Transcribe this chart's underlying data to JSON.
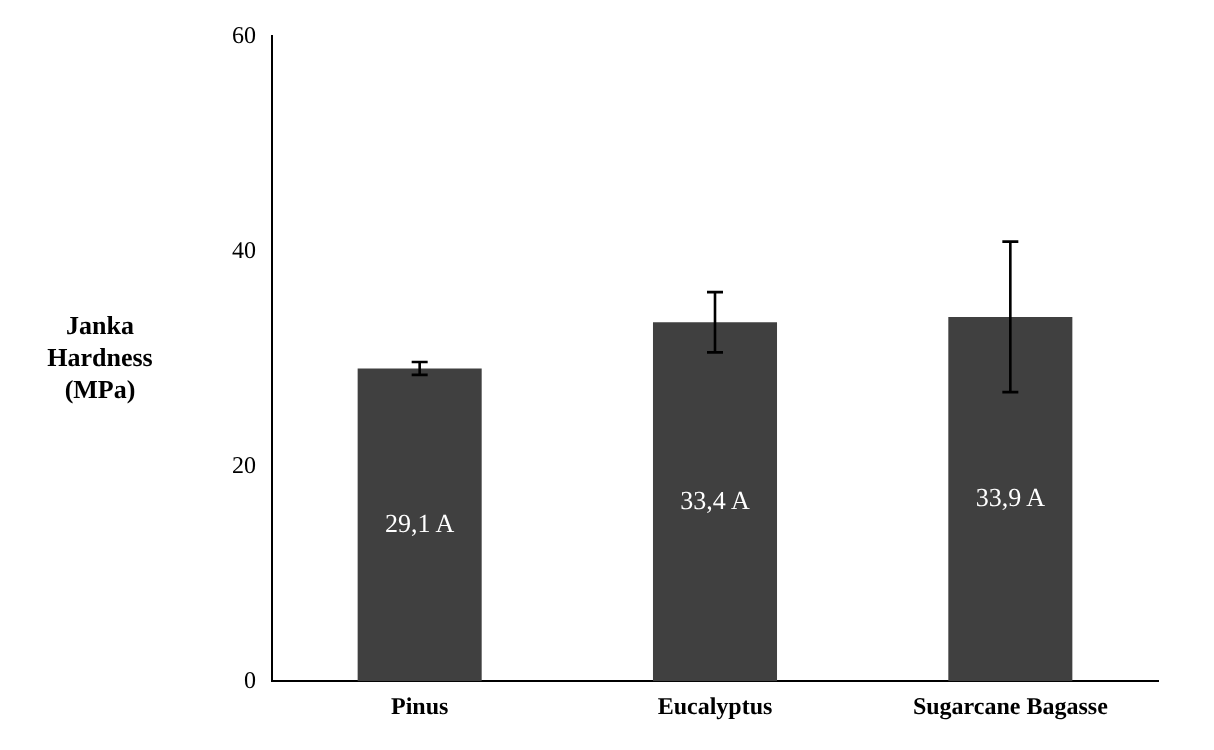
{
  "chart_data": {
    "type": "bar",
    "ylabel": "Janka Hardness (MPa)",
    "categories": [
      "Pinus",
      "Eucalyptus",
      "Sugarcane Bagasse"
    ],
    "values": [
      29.1,
      33.4,
      33.9
    ],
    "color": "#404040",
    "errors": [
      0.6,
      2.8,
      7.0
    ],
    "value_labels": [
      "29,1 A",
      "33,4 A",
      "33,9 A"
    ],
    "ylim": [
      0,
      60
    ],
    "yticks": [
      0,
      20,
      40,
      60
    ],
    "grid": false,
    "legend": false
  }
}
